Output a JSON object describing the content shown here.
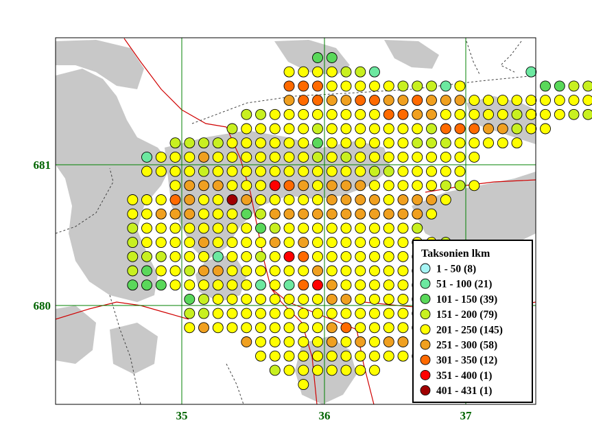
{
  "axes": {
    "x_ticks": [
      "35",
      "36",
      "37"
    ],
    "y_ticks": [
      "681",
      "680"
    ]
  },
  "legend": {
    "title": "Taksonien lkm",
    "classes": [
      {
        "label": "1 - 50 (8)",
        "color": "#a6f5f5"
      },
      {
        "label": "51 - 100 (21)",
        "color": "#6ce8a0"
      },
      {
        "label": "101 - 150 (39)",
        "color": "#5ad85a"
      },
      {
        "label": "151 - 200 (79)",
        "color": "#c8f020"
      },
      {
        "label": "201 - 250 (145)",
        "color": "#ffff00"
      },
      {
        "label": "251 - 300 (58)",
        "color": "#f0a020"
      },
      {
        "label": "301 - 350 (12)",
        "color": "#ff6a00"
      },
      {
        "label": "351 - 400 (1)",
        "color": "#ff0000"
      },
      {
        "label": "401 - 431 (1)",
        "color": "#a00000"
      }
    ]
  },
  "colors": {
    "land": "#ffffff",
    "water": "#c8c8c8",
    "grid": "#008000",
    "roads": "#d00000",
    "boundary": "#404040"
  },
  "grid_rows": [
    {
      "row": 0,
      "start": 14,
      "codes": "..22"
    },
    {
      "row": 1,
      "start": 14,
      "codes": "4444331..........1"
    },
    {
      "row": 2,
      "start": 14,
      "codes": "6664444433314.....2233322232"
    },
    {
      "row": 3,
      "start": 14,
      "codes": "566556655655544444444433"
    },
    {
      "row": 4,
      "start": 11,
      "codes": "33444444446655444443444332"
    },
    {
      "row": 5,
      "start": 10,
      "codes": "34444434444444366655344"
    },
    {
      "row": 6,
      "start": 6,
      "codes": "3333444444244444433344444"
    },
    {
      "row": 7,
      "start": 4,
      "codes": "144454444444343444444444"
    },
    {
      "row": 8,
      "start": 4,
      "codes": "44443444444444443344444"
    },
    {
      "row": 9,
      "start": 6,
      "codes": "4555444765455544444334"
    },
    {
      "row": 10,
      "start": 3,
      "codes": "44465448544444555545554"
    },
    {
      "row": 11,
      "start": 3,
      "codes": "4455544423555555555554"
    },
    {
      "row": 12,
      "start": 3,
      "codes": "344444444234444444443"
    },
    {
      "row": 13,
      "start": 3,
      "codes": "34444544445454444444443"
    },
    {
      "row": 14,
      "start": 3,
      "codes": "33344414434764444444433"
    },
    {
      "row": 15,
      "start": 3,
      "codes": "32443554444445444444443"
    },
    {
      "row": 16,
      "start": 3,
      "codes": "222444444141675444444444"
    },
    {
      "row": 17,
      "start": 7,
      "codes": "234444444455444444444"
    },
    {
      "row": 18,
      "start": 7,
      "codes": "33444444444444443444444"
    },
    {
      "row": 19,
      "start": 7,
      "codes": "4544444444564444444"
    },
    {
      "row": 20,
      "start": 11,
      "codes": "544444545455"
    },
    {
      "row": 21,
      "start": 12,
      "codes": "44444444444433"
    },
    {
      "row": 22,
      "start": 13,
      "codes": "34444444"
    },
    {
      "row": 23,
      "start": 15,
      "codes": "4"
    }
  ]
}
